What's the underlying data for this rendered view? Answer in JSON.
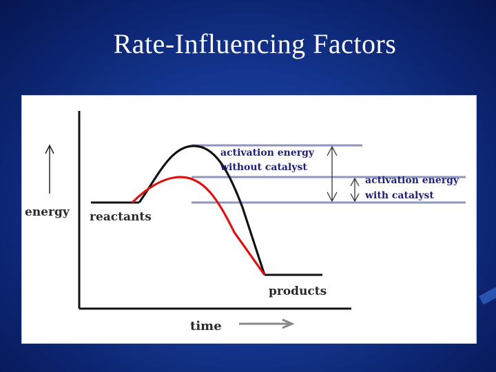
{
  "slide": {
    "title": "Rate-Influencing Factors"
  },
  "diagram": {
    "y_axis_label": "energy",
    "x_axis_label": "time",
    "reactants_label": "reactants",
    "products_label": "products",
    "activation_without_catalyst": [
      "activation energy",
      "without catalyst"
    ],
    "activation_with_catalyst": [
      "activation energy",
      "with catalyst"
    ],
    "colors": {
      "uncatalyzed_curve": "#111111",
      "catalyzed_curve": "#dd1111",
      "energy_levels": "#8b95bd",
      "annotation_text": "#1f1f78",
      "slide_background": "#143690"
    }
  }
}
